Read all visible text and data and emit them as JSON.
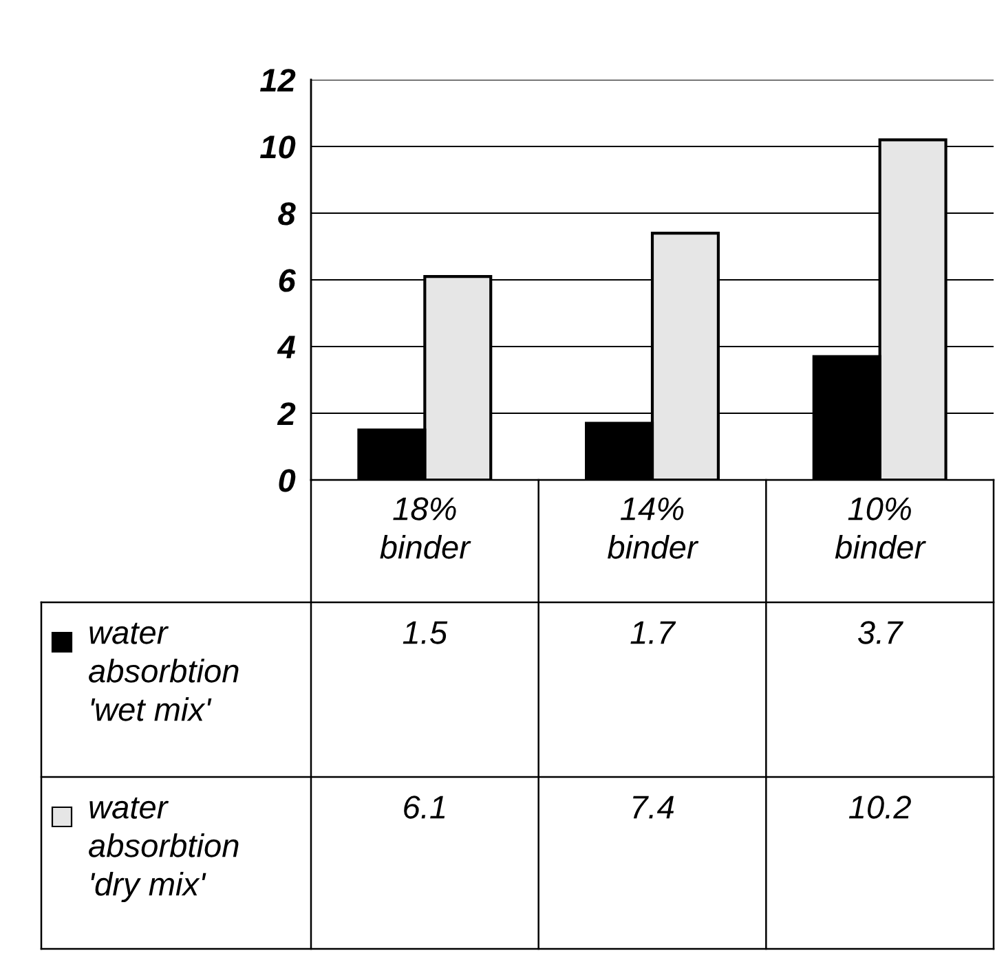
{
  "chart_data": {
    "type": "bar",
    "categories": [
      "18%\nbinder",
      "14%\nbinder",
      "10%\nbinder"
    ],
    "series": [
      {
        "name": "water\nabsorbtion\n'wet mix'",
        "color": "#000000",
        "values": [
          1.5,
          1.7,
          3.7
        ]
      },
      {
        "name": "water\nabsorbtion\n'dry mix'",
        "color": "#e6e6e6",
        "values": [
          6.1,
          7.4,
          10.2
        ]
      }
    ],
    "ylim": [
      0,
      12
    ],
    "yticks": [
      0,
      2,
      4,
      6,
      8,
      10,
      12
    ],
    "grid": "y",
    "legend": "bottom left",
    "data_labels": true
  }
}
